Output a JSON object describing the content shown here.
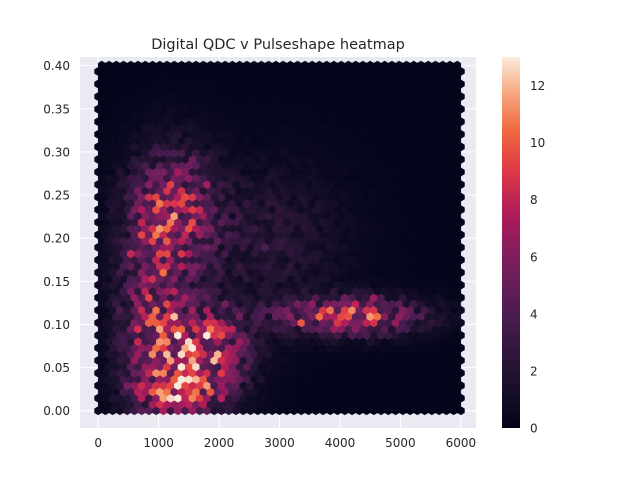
{
  "chart_data": {
    "type": "heatmap",
    "title": "Digital QDC v Pulseshape heatmap",
    "xlabel": "",
    "ylabel": "",
    "xlim": [
      -300,
      6250
    ],
    "ylim": [
      -0.02,
      0.41
    ],
    "x_ticks": [
      0,
      1000,
      2000,
      3000,
      4000,
      5000,
      6000
    ],
    "x_tick_labels": [
      "0",
      "1000",
      "2000",
      "3000",
      "4000",
      "5000",
      "6000"
    ],
    "y_ticks": [
      0.0,
      0.05,
      0.1,
      0.15,
      0.2,
      0.25,
      0.3,
      0.35,
      0.4
    ],
    "y_tick_labels": [
      "0.00",
      "0.05",
      "0.10",
      "0.15",
      "0.20",
      "0.25",
      "0.30",
      "0.35",
      "0.40"
    ],
    "hexbin_extent": {
      "x": [
        0,
        6000
      ],
      "y": [
        0,
        0.4
      ]
    },
    "colorbar": {
      "min": 0,
      "max": 13,
      "ticks": [
        0,
        2,
        4,
        6,
        8,
        10,
        12
      ],
      "tick_labels": [
        "0",
        "2",
        "4",
        "6",
        "8",
        "10",
        "12"
      ],
      "colormap": "rocket"
    },
    "count_clusters": [
      {
        "x": 1200,
        "y": 0.23,
        "sx": 500,
        "sy": 0.05,
        "peak": 7
      },
      {
        "x": 900,
        "y": 0.1,
        "sx": 400,
        "sy": 0.06,
        "peak": 6
      },
      {
        "x": 1800,
        "y": 0.07,
        "sx": 500,
        "sy": 0.035,
        "peak": 8
      },
      {
        "x": 1300,
        "y": 0.02,
        "sx": 500,
        "sy": 0.02,
        "peak": 6
      },
      {
        "x": 4200,
        "y": 0.11,
        "sx": 800,
        "sy": 0.015,
        "peak": 8
      },
      {
        "x": 2800,
        "y": 0.2,
        "sx": 900,
        "sy": 0.06,
        "peak": 2
      }
    ],
    "grid": true,
    "background": "#eaeaf2"
  }
}
